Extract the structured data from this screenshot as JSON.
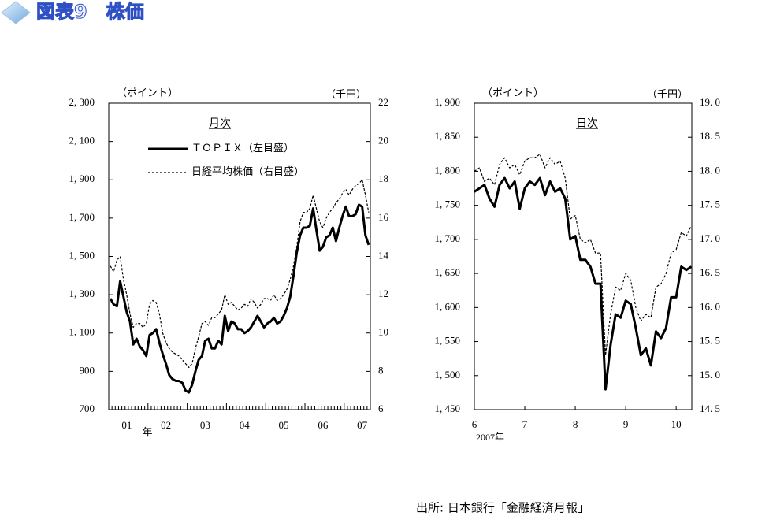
{
  "header": {
    "title": "図表9　株価"
  },
  "footer": {
    "source": "出所: 日本銀行「金融経済月報」"
  },
  "chart_data": [
    {
      "type": "line",
      "subtitle": "月次",
      "y_label": "（ポイント）",
      "y2_label": "（千円）",
      "x_label": "年",
      "legend": true,
      "categories": [
        null,
        null,
        null,
        null,
        null,
        "01",
        null,
        null,
        null,
        null,
        null,
        null,
        null,
        null,
        null,
        null,
        null,
        "02",
        null,
        null,
        null,
        null,
        null,
        null,
        null,
        null,
        null,
        null,
        null,
        "03",
        null,
        null,
        null,
        null,
        null,
        null,
        null,
        null,
        null,
        null,
        null,
        "04",
        null,
        null,
        null,
        null,
        null,
        null,
        null,
        null,
        null,
        null,
        null,
        "05",
        null,
        null,
        null,
        null,
        null,
        null,
        null,
        null,
        null,
        null,
        null,
        "06",
        null,
        null,
        null,
        null,
        null,
        null,
        null,
        null,
        null,
        null,
        null,
        "07",
        null,
        null
      ],
      "series": [
        {
          "name": "ＴＯＰＩＸ（左目盛）",
          "color": "#000000",
          "style": "solid",
          "values": [
            1280,
            1250,
            1240,
            1370,
            1290,
            1210,
            1160,
            1040,
            1070,
            1030,
            1010,
            980,
            1090,
            1100,
            1120,
            1050,
            990,
            940,
            880,
            860,
            850,
            850,
            840,
            800,
            790,
            830,
            900,
            960,
            980,
            1060,
            1070,
            1020,
            1020,
            1060,
            1040,
            1190,
            1110,
            1160,
            1150,
            1120,
            1120,
            1100,
            1110,
            1130,
            1160,
            1190,
            1160,
            1130,
            1150,
            1160,
            1180,
            1150,
            1160,
            1190,
            1230,
            1290,
            1400,
            1520,
            1610,
            1650,
            1650,
            1660,
            1750,
            1640,
            1530,
            1550,
            1600,
            1610,
            1650,
            1580,
            1650,
            1710,
            1760,
            1710,
            1710,
            1720,
            1770,
            1760,
            1610,
            1560
          ]
        },
        {
          "name": "日経平均株価（右目盛）",
          "color": "#000000",
          "style": "dotted",
          "axis": "y2",
          "values": [
            13.5,
            13.2,
            13.8,
            14.0,
            12.8,
            12.0,
            11.0,
            10.3,
            10.5,
            10.5,
            10.3,
            10.5,
            11.5,
            11.7,
            11.6,
            11.0,
            10.0,
            9.5,
            9.2,
            9.0,
            8.9,
            8.8,
            8.6,
            8.4,
            8.2,
            8.4,
            9.2,
            9.8,
            10.5,
            10.6,
            10.4,
            10.8,
            10.8,
            11.0,
            11.2,
            12.0,
            11.5,
            11.6,
            11.4,
            11.2,
            11.3,
            11.5,
            11.4,
            11.8,
            11.6,
            11.3,
            11.5,
            11.8,
            11.8,
            11.7,
            12.0,
            11.7,
            11.8,
            12.0,
            12.3,
            12.8,
            13.5,
            14.5,
            15.8,
            16.3,
            16.3,
            16.5,
            17.2,
            16.5,
            15.8,
            15.5,
            16.0,
            16.3,
            16.5,
            16.8,
            17.0,
            17.3,
            17.5,
            17.2,
            17.5,
            17.7,
            17.8,
            18.0,
            17.2,
            16.3
          ]
        }
      ],
      "ylim": [
        700,
        2300
      ],
      "yticks": [
        700,
        900,
        {
          "value": 1100,
          "label": "1, 100"
        },
        {
          "value": 1300,
          "label": "1, 300"
        },
        {
          "value": 1500,
          "label": "1, 500"
        },
        {
          "value": 1700,
          "label": "1, 700"
        },
        {
          "value": 1900,
          "label": "1, 900"
        },
        {
          "value": 2100,
          "label": "2, 100"
        },
        {
          "value": 2300,
          "label": "2, 300"
        }
      ],
      "y2lim": [
        6,
        22
      ],
      "y2ticks": [
        6,
        8,
        10,
        12,
        14,
        16,
        18,
        20,
        22
      ]
    },
    {
      "type": "line",
      "subtitle": "日次",
      "y_label": "（ポイント）",
      "y2_label": "（千円）",
      "x_label": "2007年",
      "legend": false,
      "x": [
        6.0,
        6.1,
        6.2,
        6.3,
        6.4,
        6.5,
        6.6,
        6.7,
        6.8,
        6.9,
        7.0,
        7.1,
        7.2,
        7.3,
        7.4,
        7.5,
        7.6,
        7.7,
        7.8,
        7.9,
        8.0,
        8.1,
        8.2,
        8.3,
        8.4,
        8.5,
        8.6,
        8.7,
        8.8,
        8.9,
        9.0,
        9.1,
        9.2,
        9.3,
        9.4,
        9.5,
        9.6,
        9.7,
        9.8,
        9.9,
        10.0,
        10.1,
        10.2,
        10.3
      ],
      "xlim": [
        6,
        10.31
      ],
      "xticks": [
        6,
        7,
        8,
        9,
        10
      ],
      "series": [
        {
          "color": "#000000",
          "style": "solid",
          "values": [
            1770,
            1775,
            1780,
            1760,
            1748,
            1780,
            1790,
            1775,
            1785,
            1745,
            1775,
            1785,
            1780,
            1790,
            1765,
            1785,
            1770,
            1775,
            1760,
            1700,
            1705,
            1670,
            1670,
            1660,
            1635,
            1635,
            1480,
            1545,
            1590,
            1585,
            1610,
            1605,
            1570,
            1530,
            1540,
            1515,
            1565,
            1555,
            1570,
            1615,
            1615,
            1660,
            1655,
            1660
          ]
        },
        {
          "color": "#000000",
          "style": "dotted",
          "axis": "y2",
          "values": [
            18.0,
            18.05,
            17.85,
            17.9,
            17.8,
            18.1,
            18.2,
            18.05,
            18.1,
            17.95,
            18.15,
            18.2,
            18.2,
            18.25,
            18.05,
            18.2,
            18.1,
            18.15,
            17.9,
            17.3,
            17.35,
            17.0,
            16.95,
            17.0,
            16.8,
            16.8,
            15.3,
            15.9,
            16.3,
            16.25,
            16.5,
            16.4,
            16.0,
            15.8,
            15.9,
            15.85,
            16.3,
            16.35,
            16.5,
            16.8,
            16.85,
            17.1,
            17.05,
            17.2
          ]
        }
      ],
      "ylim": [
        1450,
        1900
      ],
      "yticks": [
        {
          "value": 1450,
          "label": "1, 450"
        },
        {
          "value": 1500,
          "label": "1, 500"
        },
        {
          "value": 1550,
          "label": "1, 550"
        },
        {
          "value": 1600,
          "label": "1, 600"
        },
        {
          "value": 1650,
          "label": "1, 650"
        },
        {
          "value": 1700,
          "label": "1, 700"
        },
        {
          "value": 1750,
          "label": "1, 750"
        },
        {
          "value": 1800,
          "label": "1, 800"
        },
        {
          "value": 1850,
          "label": "1, 850"
        },
        {
          "value": 1900,
          "label": "1, 900"
        }
      ],
      "y2lim": [
        14.5,
        19.0
      ],
      "y2ticks": [
        {
          "value": 14.5,
          "label": "14. 5"
        },
        {
          "value": 15.0,
          "label": "15. 0"
        },
        {
          "value": 15.5,
          "label": "15. 5"
        },
        {
          "value": 16.0,
          "label": "16. 0"
        },
        {
          "value": 16.5,
          "label": "16. 5"
        },
        {
          "value": 17.0,
          "label": "17. 0"
        },
        {
          "value": 17.5,
          "label": "17. 5"
        },
        {
          "value": 18.0,
          "label": "18. 0"
        },
        {
          "value": 18.5,
          "label": "18. 5"
        },
        {
          "value": 19.0,
          "label": "19. 0"
        }
      ]
    }
  ]
}
